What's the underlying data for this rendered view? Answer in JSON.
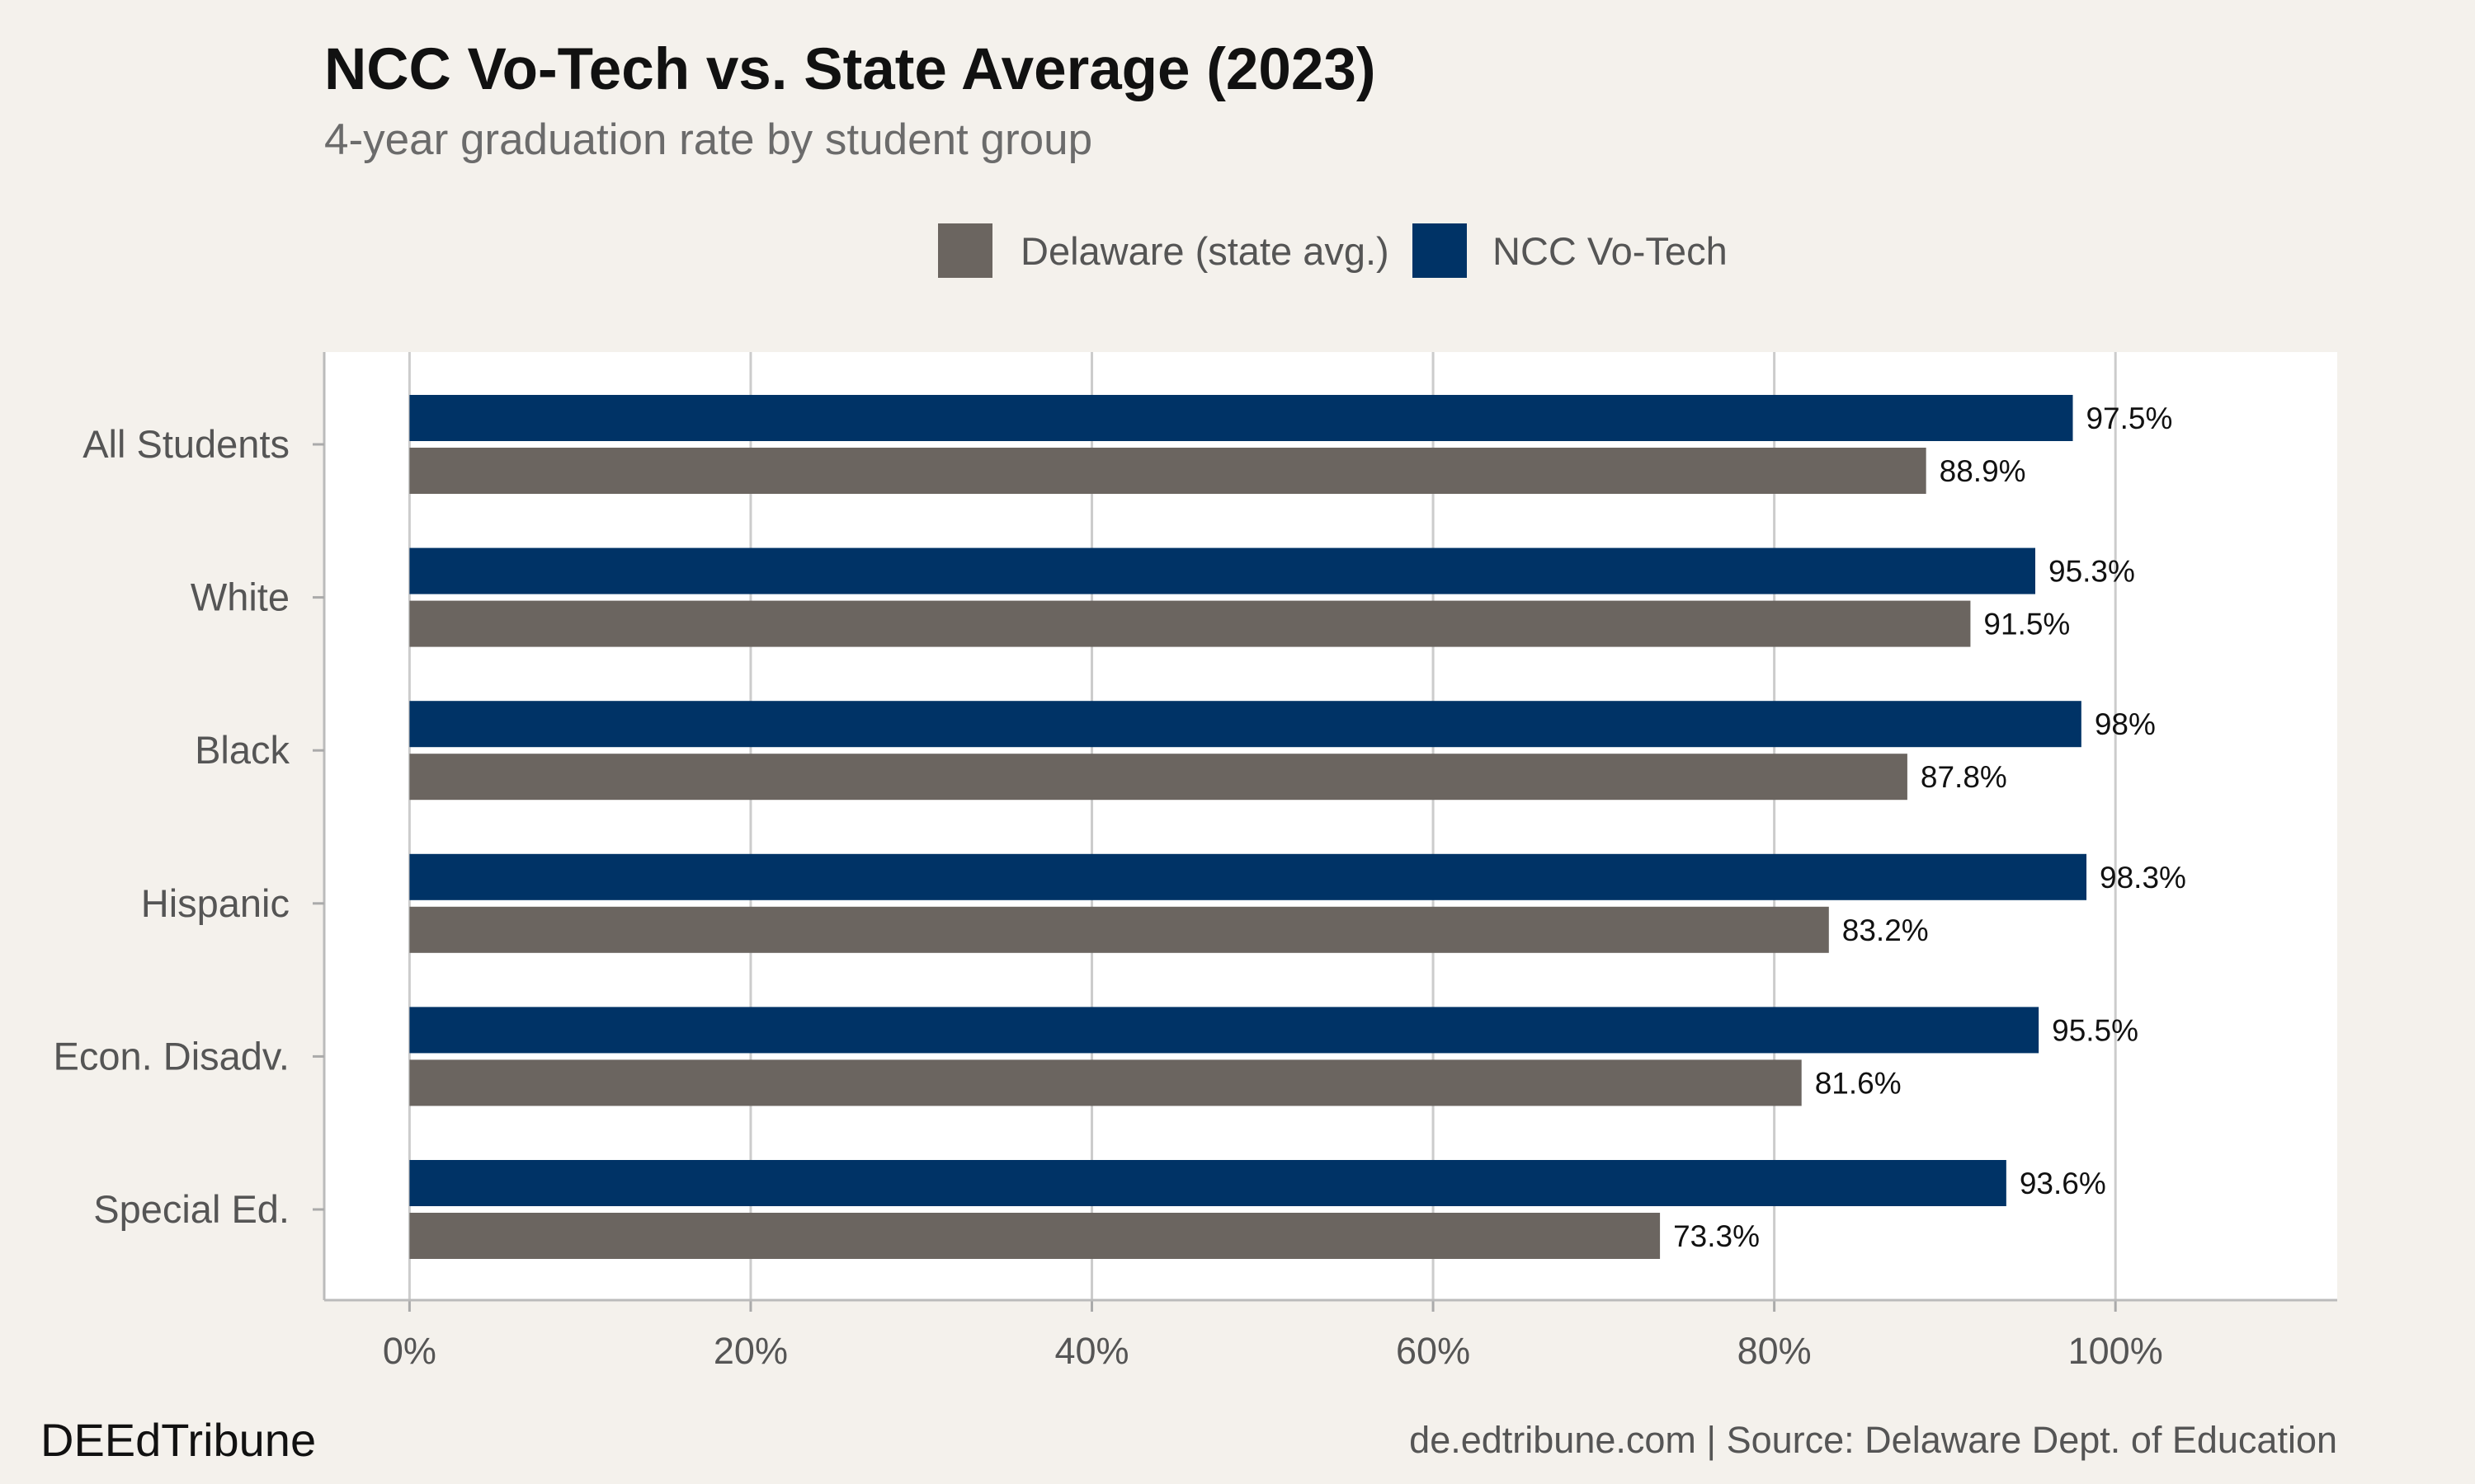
{
  "chart_data": {
    "type": "bar",
    "orientation": "horizontal",
    "title": "NCC Vo-Tech vs. State Average (2023)",
    "subtitle": "4-year graduation rate by student group",
    "categories": [
      "All Students",
      "White",
      "Black",
      "Hispanic",
      "Econ. Disadv.",
      "Special Ed."
    ],
    "series": [
      {
        "name": "NCC Vo-Tech",
        "color": "#003366",
        "values": [
          97.5,
          95.3,
          98,
          98.3,
          95.5,
          93.6
        ]
      },
      {
        "name": "Delaware (state avg.)",
        "color": "#6b6560",
        "values": [
          88.9,
          91.5,
          87.8,
          83.2,
          81.6,
          73.3
        ]
      }
    ],
    "value_labels": [
      [
        "97.5%",
        "95.3%",
        "98%",
        "98.3%",
        "95.5%",
        "93.6%"
      ],
      [
        "88.9%",
        "91.5%",
        "87.8%",
        "83.2%",
        "81.6%",
        "73.3%"
      ]
    ],
    "legend": {
      "position": "top",
      "entries": [
        {
          "label": "Delaware (state avg.)",
          "color": "#6b6560"
        },
        {
          "label": "NCC Vo-Tech",
          "color": "#003366"
        }
      ]
    },
    "xlim": [
      -5,
      113
    ],
    "xticks": [
      0,
      20,
      40,
      60,
      80,
      100
    ],
    "xtick_labels": [
      "0%",
      "20%",
      "40%",
      "60%",
      "80%",
      "100%"
    ],
    "grid": true,
    "xlabel": "",
    "ylabel": ""
  },
  "footer": {
    "brand": "DEEdTribune",
    "source": "de.edtribune.com | Source: Delaware Dept. of Education"
  },
  "colors": {
    "background": "#f4f1ec",
    "panel": "#ffffff",
    "grid": "#cccccc"
  }
}
